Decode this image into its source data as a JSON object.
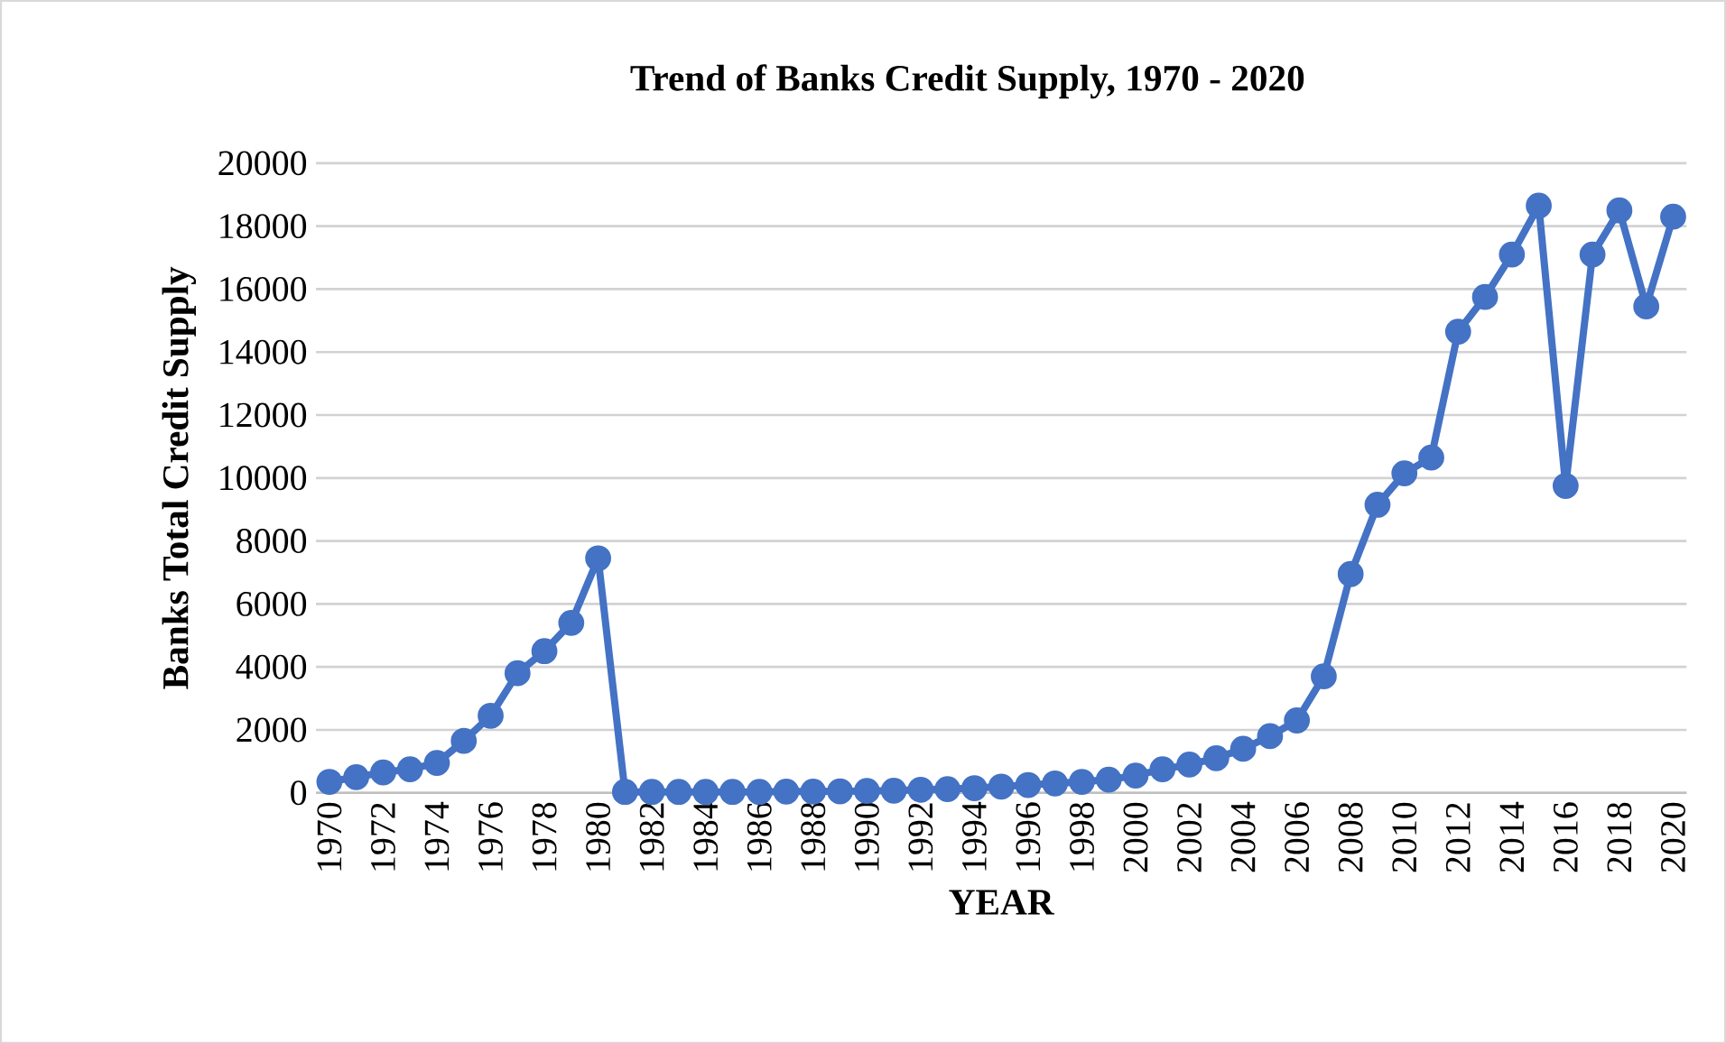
{
  "chart_data": {
    "type": "line",
    "title": "Trend of Banks Credit Supply, 1970 - 2020",
    "xlabel": "YEAR",
    "ylabel": "Banks Total Credit Supply",
    "categories": [
      "1970",
      null,
      "1972",
      null,
      "1974",
      null,
      "1976",
      null,
      "1978",
      null,
      "1980",
      null,
      "1982",
      null,
      "1984",
      null,
      "1986",
      null,
      "1988",
      null,
      "1990",
      null,
      "1992",
      null,
      "1994",
      null,
      "1996",
      null,
      "1998",
      null,
      "2000",
      null,
      "2002",
      null,
      "2004",
      null,
      "2006",
      null,
      "2008",
      null,
      "2010",
      null,
      "2012",
      null,
      "2014",
      null,
      "2016",
      null,
      "2018",
      null,
      "2020"
    ],
    "series": [
      {
        "color": "#4472c4",
        "values": [
          350,
          500,
          650,
          750,
          950,
          1650,
          2450,
          3800,
          4500,
          5400,
          7450,
          30,
          30,
          30,
          30,
          30,
          30,
          40,
          40,
          50,
          60,
          70,
          100,
          120,
          150,
          200,
          250,
          300,
          350,
          420,
          550,
          750,
          900,
          1100,
          1400,
          1800,
          2300,
          3700,
          6950,
          9150,
          10150,
          10650,
          14650,
          15750,
          17100,
          18650,
          9750,
          17100,
          18500,
          15450,
          18300
        ]
      }
    ],
    "ylim": [
      0,
      20000
    ],
    "yticks": [
      0,
      2000,
      4000,
      6000,
      8000,
      10000,
      12000,
      14000,
      16000,
      18000,
      20000
    ],
    "grid": "y",
    "marker": "circle",
    "line_style": "solid"
  }
}
